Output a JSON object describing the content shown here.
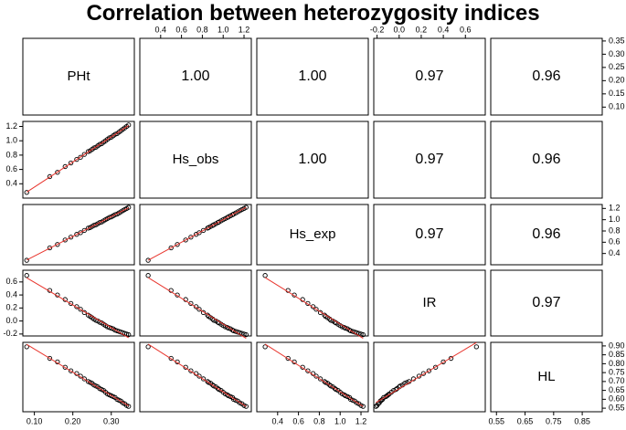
{
  "chart_data": {
    "type": "scatter",
    "matrix_type": "pairs",
    "title": "Correlation between heterozygosity indices",
    "variables": [
      "PHt",
      "Hs_obs",
      "Hs_exp",
      "IR",
      "HL"
    ],
    "ranges": {
      "PHt": [
        0.07,
        0.36
      ],
      "Hs_obs": [
        0.2,
        1.27
      ],
      "Hs_exp": [
        0.2,
        1.27
      ],
      "IR": [
        -0.23,
        0.78
      ],
      "HL": [
        0.53,
        0.92
      ]
    },
    "ticks": {
      "PHt": [
        0.1,
        0.15,
        0.2,
        0.25,
        0.3,
        0.35
      ],
      "Hs_obs": [
        0.4,
        0.6,
        0.8,
        1.0,
        1.2
      ],
      "Hs_exp": [
        0.4,
        0.6,
        0.8,
        1.0,
        1.2
      ],
      "IR": [
        -0.2,
        0.0,
        0.2,
        0.4,
        0.6
      ],
      "HL": [
        0.55,
        0.6,
        0.65,
        0.7,
        0.75,
        0.8,
        0.85,
        0.9
      ]
    },
    "tick_labels": {
      "top": {
        "Hs_obs": [
          "0.4",
          "0.6",
          "0.8",
          "1.0",
          "1.2"
        ],
        "IR": [
          "-0.2",
          "0.0",
          "0.2",
          "0.4",
          "0.6"
        ]
      },
      "right": {
        "PHt": [
          "0.10",
          "0.15",
          "0.20",
          "0.25",
          "0.30",
          "0.35"
        ],
        "Hs_exp": [
          "0.4",
          "0.6",
          "0.8",
          "1.0",
          "1.2"
        ],
        "HL": [
          "0.55",
          "0.60",
          "0.65",
          "0.70",
          "0.75",
          "0.80",
          "0.85",
          "0.90"
        ]
      },
      "left": {
        "Hs_obs": [
          "0.4",
          "0.6",
          "0.8",
          "1.0",
          "1.2"
        ],
        "IR": [
          "-0.2",
          "0.0",
          "0.2",
          "0.4",
          "0.6"
        ]
      },
      "bottom": {
        "PHt": [
          "0.10",
          "0.20",
          "0.30"
        ],
        "Hs_exp": [
          "0.4",
          "0.6",
          "0.8",
          "1.0",
          "1.2"
        ],
        "HL": [
          "0.55",
          "0.65",
          "0.75",
          "0.85"
        ]
      }
    },
    "correlations": [
      {
        "row": "PHt",
        "col": "Hs_obs",
        "value": "1.00"
      },
      {
        "row": "PHt",
        "col": "Hs_exp",
        "value": "1.00"
      },
      {
        "row": "PHt",
        "col": "IR",
        "value": "0.97"
      },
      {
        "row": "PHt",
        "col": "HL",
        "value": "0.96"
      },
      {
        "row": "Hs_obs",
        "col": "Hs_exp",
        "value": "1.00"
      },
      {
        "row": "Hs_obs",
        "col": "IR",
        "value": "0.97"
      },
      {
        "row": "Hs_obs",
        "col": "HL",
        "value": "0.96"
      },
      {
        "row": "Hs_exp",
        "col": "IR",
        "value": "0.97"
      },
      {
        "row": "Hs_exp",
        "col": "HL",
        "value": "0.96"
      },
      {
        "row": "IR",
        "col": "HL",
        "value": "0.97"
      }
    ],
    "sample_points": [
      {
        "PHt": 0.08,
        "Hs_obs": 0.28,
        "Hs_exp": 0.28,
        "IR": 0.7,
        "HL": 0.895
      },
      {
        "PHt": 0.14,
        "Hs_obs": 0.5,
        "Hs_exp": 0.5,
        "IR": 0.47,
        "HL": 0.83
      },
      {
        "PHt": 0.16,
        "Hs_obs": 0.56,
        "Hs_exp": 0.56,
        "IR": 0.4,
        "HL": 0.81
      },
      {
        "PHt": 0.18,
        "Hs_obs": 0.64,
        "Hs_exp": 0.64,
        "IR": 0.33,
        "HL": 0.78
      },
      {
        "PHt": 0.195,
        "Hs_obs": 0.69,
        "Hs_exp": 0.69,
        "IR": 0.27,
        "HL": 0.76
      },
      {
        "PHt": 0.21,
        "Hs_obs": 0.74,
        "Hs_exp": 0.74,
        "IR": 0.22,
        "HL": 0.745
      },
      {
        "PHt": 0.22,
        "Hs_obs": 0.77,
        "Hs_exp": 0.77,
        "IR": 0.18,
        "HL": 0.73
      },
      {
        "PHt": 0.23,
        "Hs_obs": 0.81,
        "Hs_exp": 0.81,
        "IR": 0.13,
        "HL": 0.715
      },
      {
        "PHt": 0.24,
        "Hs_obs": 0.85,
        "Hs_exp": 0.85,
        "IR": 0.09,
        "HL": 0.7
      },
      {
        "PHt": 0.245,
        "Hs_obs": 0.86,
        "Hs_exp": 0.86,
        "IR": 0.07,
        "HL": 0.695
      },
      {
        "PHt": 0.25,
        "Hs_obs": 0.88,
        "Hs_exp": 0.88,
        "IR": 0.05,
        "HL": 0.69
      },
      {
        "PHt": 0.255,
        "Hs_obs": 0.9,
        "Hs_exp": 0.9,
        "IR": 0.03,
        "HL": 0.68
      },
      {
        "PHt": 0.26,
        "Hs_obs": 0.91,
        "Hs_exp": 0.91,
        "IR": 0.01,
        "HL": 0.675
      },
      {
        "PHt": 0.265,
        "Hs_obs": 0.93,
        "Hs_exp": 0.93,
        "IR": 0.0,
        "HL": 0.67
      },
      {
        "PHt": 0.27,
        "Hs_obs": 0.95,
        "Hs_exp": 0.95,
        "IR": -0.02,
        "HL": 0.66
      },
      {
        "PHt": 0.275,
        "Hs_obs": 0.96,
        "Hs_exp": 0.96,
        "IR": -0.03,
        "HL": 0.655
      },
      {
        "PHt": 0.28,
        "Hs_obs": 0.98,
        "Hs_exp": 0.98,
        "IR": -0.05,
        "HL": 0.65
      },
      {
        "PHt": 0.285,
        "Hs_obs": 1.0,
        "Hs_exp": 1.0,
        "IR": -0.07,
        "HL": 0.64
      },
      {
        "PHt": 0.29,
        "Hs_obs": 1.02,
        "Hs_exp": 1.02,
        "IR": -0.09,
        "HL": 0.63
      },
      {
        "PHt": 0.295,
        "Hs_obs": 1.04,
        "Hs_exp": 1.04,
        "IR": -0.1,
        "HL": 0.625
      },
      {
        "PHt": 0.3,
        "Hs_obs": 1.05,
        "Hs_exp": 1.05,
        "IR": -0.11,
        "HL": 0.62
      },
      {
        "PHt": 0.305,
        "Hs_obs": 1.07,
        "Hs_exp": 1.07,
        "IR": -0.12,
        "HL": 0.615
      },
      {
        "PHt": 0.31,
        "Hs_obs": 1.09,
        "Hs_exp": 1.09,
        "IR": -0.14,
        "HL": 0.61
      },
      {
        "PHt": 0.315,
        "Hs_obs": 1.1,
        "Hs_exp": 1.1,
        "IR": -0.15,
        "HL": 0.6
      },
      {
        "PHt": 0.32,
        "Hs_obs": 1.12,
        "Hs_exp": 1.12,
        "IR": -0.16,
        "HL": 0.595
      },
      {
        "PHt": 0.325,
        "Hs_obs": 1.14,
        "Hs_exp": 1.14,
        "IR": -0.17,
        "HL": 0.59
      },
      {
        "PHt": 0.33,
        "Hs_obs": 1.16,
        "Hs_exp": 1.16,
        "IR": -0.18,
        "HL": 0.58
      },
      {
        "PHt": 0.335,
        "Hs_obs": 1.18,
        "Hs_exp": 1.18,
        "IR": -0.19,
        "HL": 0.575
      },
      {
        "PHt": 0.34,
        "Hs_obs": 1.2,
        "Hs_exp": 1.2,
        "IR": -0.2,
        "HL": 0.565
      },
      {
        "PHt": 0.345,
        "Hs_obs": 1.22,
        "Hs_exp": 1.22,
        "IR": -0.21,
        "HL": 0.56
      }
    ],
    "fit_line_color": "#e8342c",
    "point_color": "#000000"
  }
}
